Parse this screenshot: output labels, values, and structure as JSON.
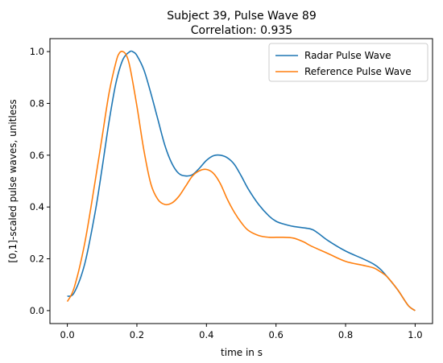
{
  "chart_data": {
    "type": "line",
    "title": "Subject 39, Pulse Wave 89",
    "subtitle": "Correlation: 0.935",
    "xlabel": "time in s",
    "ylabel": "[0,1]-scaled pulse waves, unitless",
    "xlim": [
      -0.05,
      1.05
    ],
    "ylim": [
      -0.05,
      1.05
    ],
    "xticks": [
      0.0,
      0.2,
      0.4,
      0.6,
      0.8,
      1.0
    ],
    "xtick_labels": [
      "0.0",
      "0.2",
      "0.4",
      "0.6",
      "0.8",
      "1.0"
    ],
    "yticks": [
      0.0,
      0.2,
      0.4,
      0.6,
      0.8,
      1.0
    ],
    "ytick_labels": [
      "0.0",
      "0.2",
      "0.4",
      "0.6",
      "0.8",
      "1.0"
    ],
    "grid": false,
    "legend_position": "upper right",
    "series": [
      {
        "name": "Radar Pulse Wave",
        "color": "#1f77b4",
        "x": [
          0.0,
          0.02,
          0.05,
          0.08,
          0.1,
          0.12,
          0.14,
          0.16,
          0.18,
          0.19,
          0.2,
          0.22,
          0.24,
          0.26,
          0.28,
          0.3,
          0.32,
          0.34,
          0.36,
          0.38,
          0.4,
          0.42,
          0.44,
          0.46,
          0.48,
          0.5,
          0.52,
          0.55,
          0.58,
          0.6,
          0.62,
          0.65,
          0.7,
          0.72,
          0.75,
          0.8,
          0.85,
          0.88,
          0.9,
          0.92,
          0.95,
          0.98,
          1.0
        ],
        "y": [
          0.055,
          0.07,
          0.18,
          0.38,
          0.55,
          0.73,
          0.88,
          0.97,
          1.0,
          0.998,
          0.985,
          0.93,
          0.84,
          0.74,
          0.64,
          0.57,
          0.53,
          0.52,
          0.525,
          0.55,
          0.58,
          0.598,
          0.6,
          0.59,
          0.565,
          0.52,
          0.47,
          0.41,
          0.365,
          0.345,
          0.335,
          0.325,
          0.315,
          0.3,
          0.27,
          0.23,
          0.2,
          0.18,
          0.16,
          0.13,
          0.08,
          0.02,
          0.0
        ]
      },
      {
        "name": "Reference Pulse Wave",
        "color": "#ff7f0e",
        "x": [
          0.0,
          0.02,
          0.05,
          0.08,
          0.1,
          0.12,
          0.14,
          0.15,
          0.16,
          0.17,
          0.18,
          0.2,
          0.22,
          0.24,
          0.26,
          0.28,
          0.3,
          0.32,
          0.34,
          0.36,
          0.38,
          0.4,
          0.42,
          0.44,
          0.46,
          0.48,
          0.5,
          0.52,
          0.55,
          0.58,
          0.6,
          0.62,
          0.65,
          0.68,
          0.7,
          0.75,
          0.8,
          0.85,
          0.88,
          0.9,
          0.92,
          0.95,
          0.98,
          1.0
        ],
        "y": [
          0.035,
          0.09,
          0.26,
          0.5,
          0.67,
          0.84,
          0.96,
          0.995,
          1.0,
          0.985,
          0.94,
          0.79,
          0.62,
          0.49,
          0.43,
          0.41,
          0.415,
          0.44,
          0.48,
          0.52,
          0.54,
          0.545,
          0.53,
          0.49,
          0.43,
          0.38,
          0.34,
          0.31,
          0.29,
          0.283,
          0.283,
          0.283,
          0.28,
          0.265,
          0.25,
          0.22,
          0.19,
          0.175,
          0.165,
          0.15,
          0.13,
          0.08,
          0.02,
          0.0
        ]
      }
    ]
  }
}
